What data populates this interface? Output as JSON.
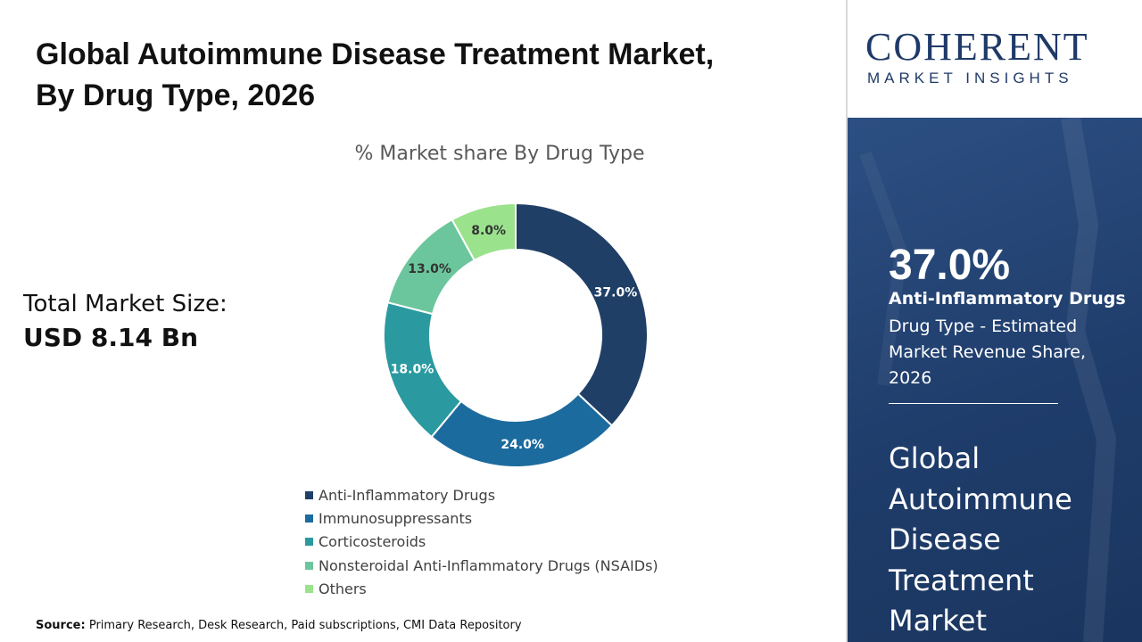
{
  "header": {
    "title_line1": "Global Autoimmune Disease Treatment Market,",
    "title_line2": "By Drug Type, 2026"
  },
  "market": {
    "label": "Total Market Size:",
    "value": "USD 8.14 Bn"
  },
  "source": {
    "label": "Source:",
    "text": "Primary Research, Desk Research, Paid subscriptions, CMI Data Repository"
  },
  "logo": {
    "main": "COHERENT",
    "sub": "MARKET INSIGHTS"
  },
  "highlight": {
    "value": "37.0%",
    "segment": "Anti-Inflammatory Drugs",
    "description": "Drug Type - Estimated Market Revenue Share, 2026",
    "panel_title": "Global Autoimmune Disease Treatment Market"
  },
  "chart_data": {
    "type": "pie",
    "title": "% Market share By Drug Type",
    "donut": true,
    "categories": [
      "Anti-Inflammatory Drugs",
      "Immunosuppressants",
      "Corticosteroids",
      "Nonsteroidal Anti-Inflammatory Drugs (NSAIDs)",
      "Others"
    ],
    "values": [
      37.0,
      24.0,
      18.0,
      13.0,
      8.0
    ],
    "data_labels": [
      "37.0%",
      "24.0%",
      "18.0%",
      "13.0%",
      "8.0%"
    ],
    "colors": [
      "#1f3f66",
      "#1c6b9e",
      "#2b9aa0",
      "#6cc69d",
      "#9be28d"
    ],
    "legend_position": "bottom"
  }
}
